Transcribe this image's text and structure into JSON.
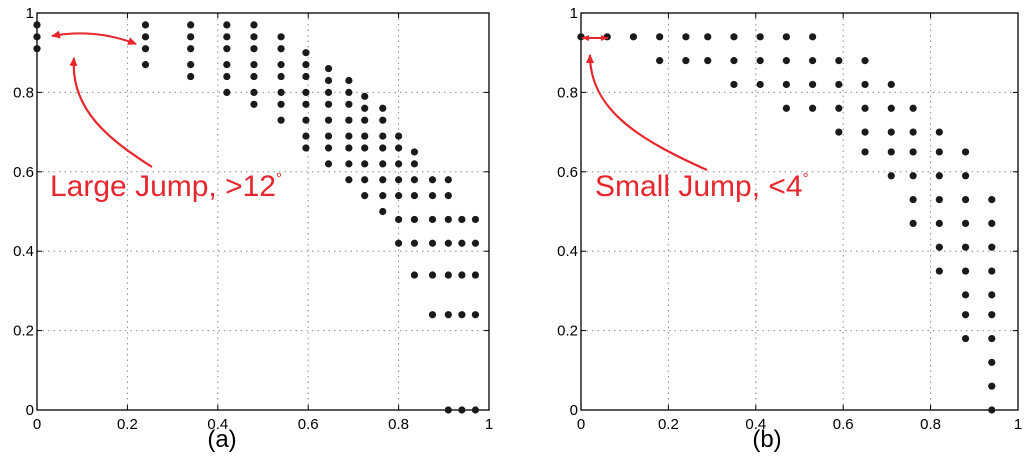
{
  "colors": {
    "annotation": "#e8262d",
    "marker": "#1a1a1a",
    "grid": "#8c8c8c",
    "axis": "#000000"
  },
  "chart_data": [
    {
      "type": "scatter",
      "subplot_label": "(a)",
      "xlim": [
        0,
        1
      ],
      "ylim": [
        0,
        1
      ],
      "xticks": [
        "0",
        "0.2",
        "0.4",
        "0.6",
        "0.8",
        "1"
      ],
      "yticks": [
        "0",
        "0.2",
        "0.4",
        "0.6",
        "0.8",
        "1"
      ],
      "grid": true,
      "annotation": {
        "text": "Large Jump, >12",
        "degree_symbol": "°"
      },
      "columns": [
        {
          "x": 0.0,
          "y": [
            0.97,
            0.94,
            0.91
          ]
        },
        {
          "x": 0.24,
          "y": [
            0.97,
            0.94,
            0.91,
            0.87
          ]
        },
        {
          "x": 0.34,
          "y": [
            0.97,
            0.94,
            0.91,
            0.87,
            0.84
          ]
        },
        {
          "x": 0.42,
          "y": [
            0.97,
            0.94,
            0.91,
            0.87,
            0.84,
            0.8
          ]
        },
        {
          "x": 0.48,
          "y": [
            0.97,
            0.94,
            0.91,
            0.87,
            0.84,
            0.8,
            0.77
          ]
        },
        {
          "x": 0.54,
          "y": [
            0.94,
            0.91,
            0.87,
            0.84,
            0.8,
            0.77,
            0.73
          ]
        },
        {
          "x": 0.595,
          "y": [
            0.9,
            0.87,
            0.84,
            0.8,
            0.77,
            0.73,
            0.69,
            0.66
          ]
        },
        {
          "x": 0.645,
          "y": [
            0.86,
            0.83,
            0.8,
            0.77,
            0.73,
            0.69,
            0.66,
            0.62
          ]
        },
        {
          "x": 0.69,
          "y": [
            0.83,
            0.8,
            0.77,
            0.73,
            0.69,
            0.66,
            0.62,
            0.58
          ]
        },
        {
          "x": 0.725,
          "y": [
            0.79,
            0.76,
            0.73,
            0.69,
            0.66,
            0.62,
            0.58,
            0.54
          ]
        },
        {
          "x": 0.765,
          "y": [
            0.76,
            0.73,
            0.69,
            0.66,
            0.62,
            0.58,
            0.54,
            0.5
          ]
        },
        {
          "x": 0.8,
          "y": [
            0.69,
            0.66,
            0.62,
            0.58,
            0.54,
            0.48,
            0.42
          ]
        },
        {
          "x": 0.835,
          "y": [
            0.65,
            0.62,
            0.58,
            0.54,
            0.48,
            0.42,
            0.34
          ]
        },
        {
          "x": 0.875,
          "y": [
            0.58,
            0.54,
            0.48,
            0.42,
            0.34,
            0.24
          ]
        },
        {
          "x": 0.91,
          "y": [
            0.58,
            0.54,
            0.48,
            0.42,
            0.34,
            0.24,
            0.0
          ]
        },
        {
          "x": 0.94,
          "y": [
            0.48,
            0.42,
            0.34,
            0.24,
            0.0
          ]
        },
        {
          "x": 0.97,
          "y": [
            0.48,
            0.42,
            0.34,
            0.24,
            0.0
          ]
        }
      ]
    },
    {
      "type": "scatter",
      "subplot_label": "(b)",
      "xlim": [
        0,
        1
      ],
      "ylim": [
        0,
        1
      ],
      "xticks": [
        "0",
        "0.2",
        "0.4",
        "0.6",
        "0.8",
        "1"
      ],
      "yticks": [
        "0",
        "0.2",
        "0.4",
        "0.6",
        "0.8",
        "1"
      ],
      "grid": true,
      "annotation": {
        "text": "Small Jump, <4",
        "degree_symbol": "°"
      },
      "columns": [
        {
          "x": 0.0,
          "y": [
            0.94
          ]
        },
        {
          "x": 0.06,
          "y": [
            0.94
          ]
        },
        {
          "x": 0.12,
          "y": [
            0.94
          ]
        },
        {
          "x": 0.18,
          "y": [
            0.94,
            0.88
          ]
        },
        {
          "x": 0.24,
          "y": [
            0.94,
            0.88
          ]
        },
        {
          "x": 0.29,
          "y": [
            0.94,
            0.88
          ]
        },
        {
          "x": 0.35,
          "y": [
            0.94,
            0.88,
            0.82
          ]
        },
        {
          "x": 0.41,
          "y": [
            0.94,
            0.88,
            0.82
          ]
        },
        {
          "x": 0.47,
          "y": [
            0.94,
            0.88,
            0.82,
            0.76
          ]
        },
        {
          "x": 0.53,
          "y": [
            0.94,
            0.88,
            0.82,
            0.76
          ]
        },
        {
          "x": 0.59,
          "y": [
            0.88,
            0.82,
            0.76,
            0.7
          ]
        },
        {
          "x": 0.65,
          "y": [
            0.88,
            0.82,
            0.76,
            0.7,
            0.65
          ]
        },
        {
          "x": 0.71,
          "y": [
            0.82,
            0.76,
            0.7,
            0.65,
            0.59
          ]
        },
        {
          "x": 0.76,
          "y": [
            0.76,
            0.7,
            0.65,
            0.59,
            0.53,
            0.47
          ]
        },
        {
          "x": 0.82,
          "y": [
            0.7,
            0.65,
            0.59,
            0.53,
            0.47,
            0.41,
            0.35
          ]
        },
        {
          "x": 0.88,
          "y": [
            0.65,
            0.59,
            0.53,
            0.47,
            0.41,
            0.35,
            0.29,
            0.24,
            0.18
          ]
        },
        {
          "x": 0.94,
          "y": [
            0.53,
            0.47,
            0.41,
            0.35,
            0.29,
            0.24,
            0.18,
            0.12,
            0.06,
            0.0
          ]
        }
      ]
    }
  ]
}
